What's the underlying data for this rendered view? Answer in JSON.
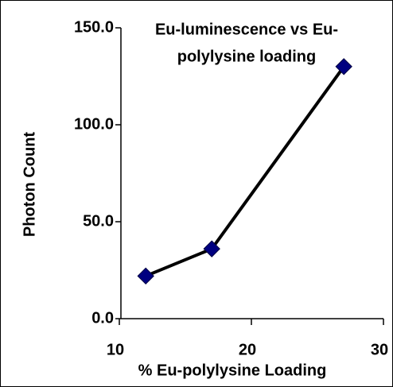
{
  "chart_data": {
    "type": "line",
    "title": [
      "Eu-luminescence vs Eu-",
      "polylysine loading"
    ],
    "x_label": "%  Eu-polylysine Loading",
    "y_label": "Photon Count",
    "x": [
      12,
      17,
      27
    ],
    "series": [
      {
        "name": "Eu-luminescence",
        "color": "#000080",
        "line_color": "#000000",
        "values": [
          22,
          36,
          130
        ]
      }
    ],
    "xlim": [
      10,
      30
    ],
    "xticks": [
      10,
      20,
      30
    ],
    "ylim": [
      0,
      150
    ],
    "yticks": [
      {
        "value": 0,
        "label": "0.0"
      },
      {
        "value": 50,
        "label": "50.0"
      },
      {
        "value": 100,
        "label": "100.0"
      },
      {
        "value": 150,
        "label": "150.0"
      }
    ],
    "grid": false
  }
}
